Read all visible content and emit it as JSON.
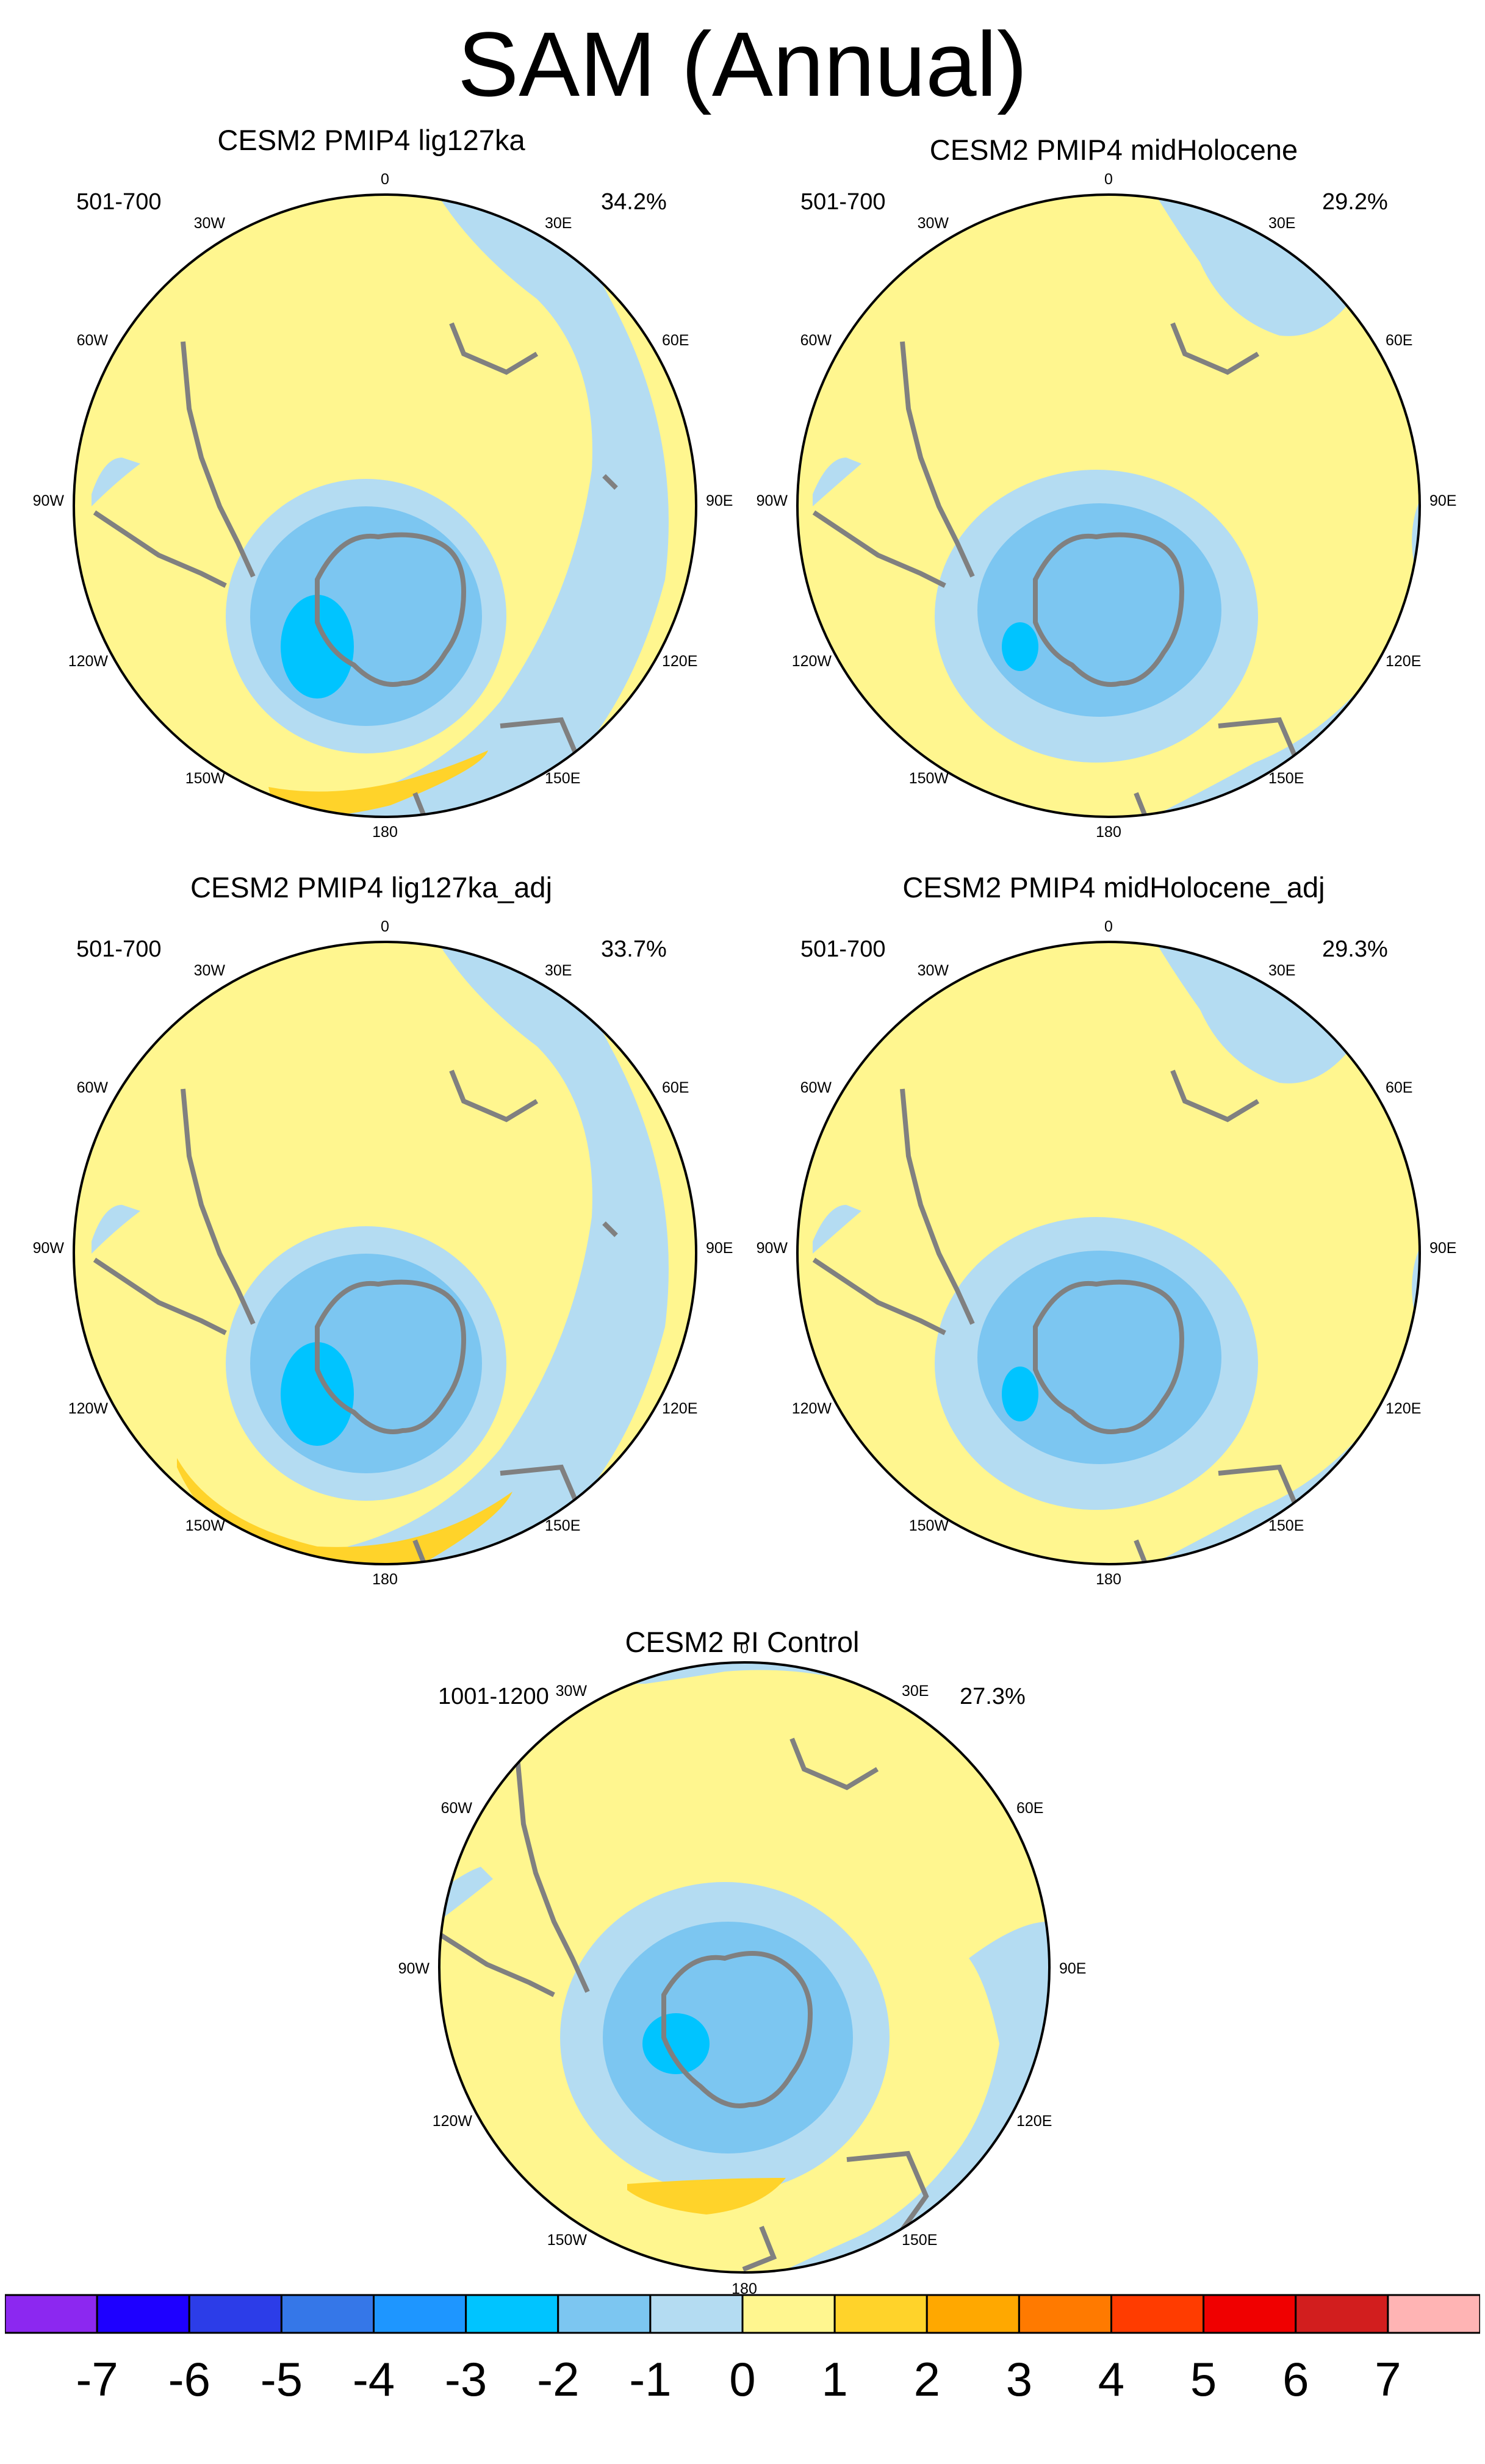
{
  "title": "SAM (Annual)",
  "colors": {
    "yellow_0_1": "#FFF68F",
    "gold_1_2": "#FFD32A",
    "light_blue_m1_0": "#B4DCF2",
    "blue_m2_m1": "#7CC6F1",
    "blue_m3_m2": "#00C4FF",
    "coast": "#808080"
  },
  "lon_labels": [
    "0",
    "30E",
    "60E",
    "90E",
    "120E",
    "150E",
    "180",
    "150W",
    "120W",
    "90W",
    "60W",
    "30W"
  ],
  "panels": [
    {
      "title": "CESM2 PMIP4 lig127ka",
      "period": "501-700",
      "variance": "34.2%"
    },
    {
      "title": "CESM2 PMIP4 midHolocene",
      "period": "501-700",
      "variance": "29.2%"
    },
    {
      "title": "CESM2 PMIP4 lig127ka_adj",
      "period": "501-700",
      "variance": "33.7%"
    },
    {
      "title": "CESM2 PMIP4 midHolocene_adj",
      "period": "501-700",
      "variance": "29.3%"
    },
    {
      "title": "CESM2 PI Control",
      "period": "1001-1200",
      "variance": "27.3%"
    }
  ],
  "colorbar": {
    "colors": [
      "#8C28F0",
      "#1E00FF",
      "#2C3DE8",
      "#3577E8",
      "#1E96FF",
      "#00C4FF",
      "#7CC6F1",
      "#B4DCF2",
      "#FFF68F",
      "#FFD32A",
      "#FFA800",
      "#FF7A00",
      "#FF3C00",
      "#F00000",
      "#D21E1E",
      "#FFB4B4"
    ],
    "labels": [
      "-7",
      "-6",
      "-5",
      "-4",
      "-3",
      "-2",
      "-1",
      "0",
      "1",
      "2",
      "3",
      "4",
      "5",
      "6",
      "7"
    ]
  }
}
